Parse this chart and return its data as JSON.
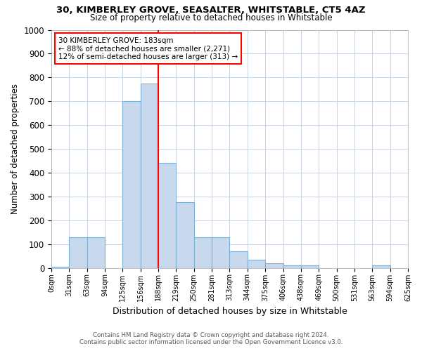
{
  "title1": "30, KIMBERLEY GROVE, SEASALTER, WHITSTABLE, CT5 4AZ",
  "title2": "Size of property relative to detached houses in Whitstable",
  "xlabel": "Distribution of detached houses by size in Whitstable",
  "ylabel": "Number of detached properties",
  "bin_labels": [
    "0sqm",
    "31sqm",
    "63sqm",
    "94sqm",
    "125sqm",
    "156sqm",
    "188sqm",
    "219sqm",
    "250sqm",
    "281sqm",
    "313sqm",
    "344sqm",
    "375sqm",
    "406sqm",
    "438sqm",
    "469sqm",
    "500sqm",
    "531sqm",
    "563sqm",
    "594sqm",
    "625sqm"
  ],
  "bar_values": [
    5,
    130,
    130,
    0,
    700,
    775,
    440,
    275,
    130,
    130,
    70,
    35,
    20,
    10,
    10,
    0,
    0,
    0,
    10,
    0
  ],
  "bar_color": "#c8d9ee",
  "bar_edge_color": "#7bafd4",
  "vline_color": "red",
  "vline_x_bin": 6,
  "annotation_text": "30 KIMBERLEY GROVE: 183sqm\n← 88% of detached houses are smaller (2,271)\n12% of semi-detached houses are larger (313) →",
  "annotation_box_color": "white",
  "annotation_box_edge_color": "red",
  "ylim": [
    0,
    1000
  ],
  "yticks": [
    0,
    100,
    200,
    300,
    400,
    500,
    600,
    700,
    800,
    900,
    1000
  ],
  "footer1": "Contains HM Land Registry data © Crown copyright and database right 2024.",
  "footer2": "Contains public sector information licensed under the Open Government Licence v3.0.",
  "bg_color": "#ffffff",
  "grid_color": "#c8d4e0"
}
